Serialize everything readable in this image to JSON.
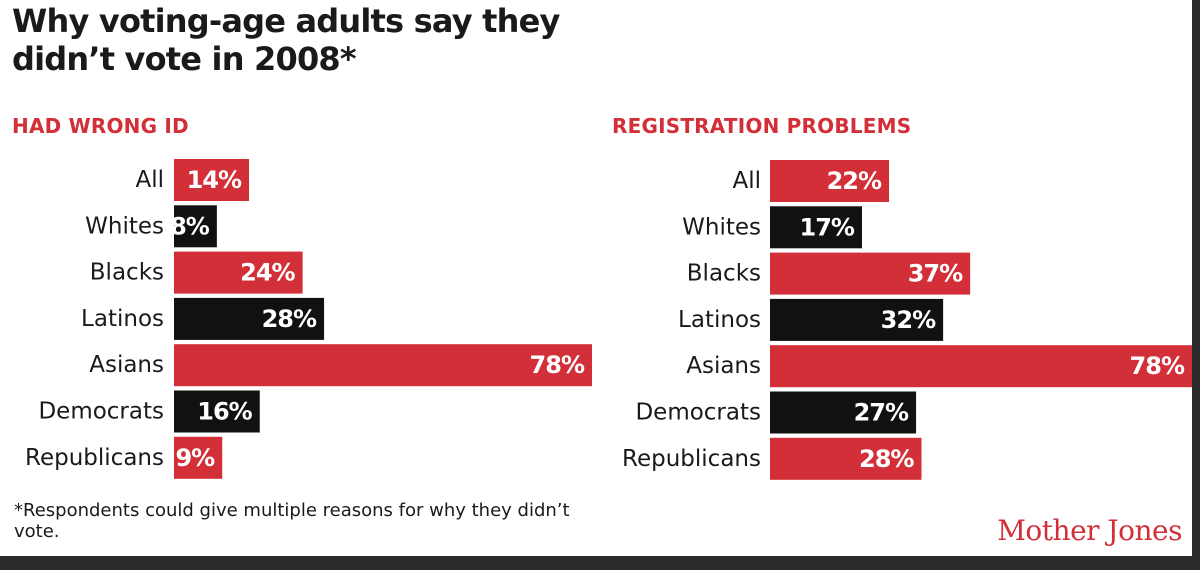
{
  "title": "Why voting-age adults say they didn’t vote in 2008*",
  "footnote": "*Respondents could give multiple reasons for why they didn’t vote.",
  "logo": "Mother Jones",
  "colors": {
    "red": "#d32f38",
    "black": "#111111",
    "text": "#1a1a1a"
  },
  "chart_data": [
    {
      "type": "bar",
      "orientation": "horizontal",
      "title": "HAD WRONG ID",
      "categories": [
        "All",
        "Whites",
        "Blacks",
        "Latinos",
        "Asians",
        "Democrats",
        "Republicans"
      ],
      "values": [
        14,
        8,
        24,
        28,
        78,
        16,
        9
      ],
      "value_labels": [
        "14%",
        "8%",
        "24%",
        "28%",
        "78%",
        "16%",
        "9%"
      ],
      "bar_colors": [
        "#d32f38",
        "#111111",
        "#d32f38",
        "#111111",
        "#d32f38",
        "#111111",
        "#d32f38"
      ],
      "unit": "%",
      "xlim": [
        0,
        78
      ]
    },
    {
      "type": "bar",
      "orientation": "horizontal",
      "title": "REGISTRATION PROBLEMS",
      "categories": [
        "All",
        "Whites",
        "Blacks",
        "Latinos",
        "Asians",
        "Democrats",
        "Republicans"
      ],
      "values": [
        22,
        17,
        37,
        32,
        78,
        27,
        28
      ],
      "value_labels": [
        "22%",
        "17%",
        "37%",
        "32%",
        "78%",
        "27%",
        "28%"
      ],
      "bar_colors": [
        "#d32f38",
        "#111111",
        "#d32f38",
        "#111111",
        "#d32f38",
        "#111111",
        "#d32f38"
      ],
      "unit": "%",
      "xlim": [
        0,
        78
      ]
    }
  ]
}
